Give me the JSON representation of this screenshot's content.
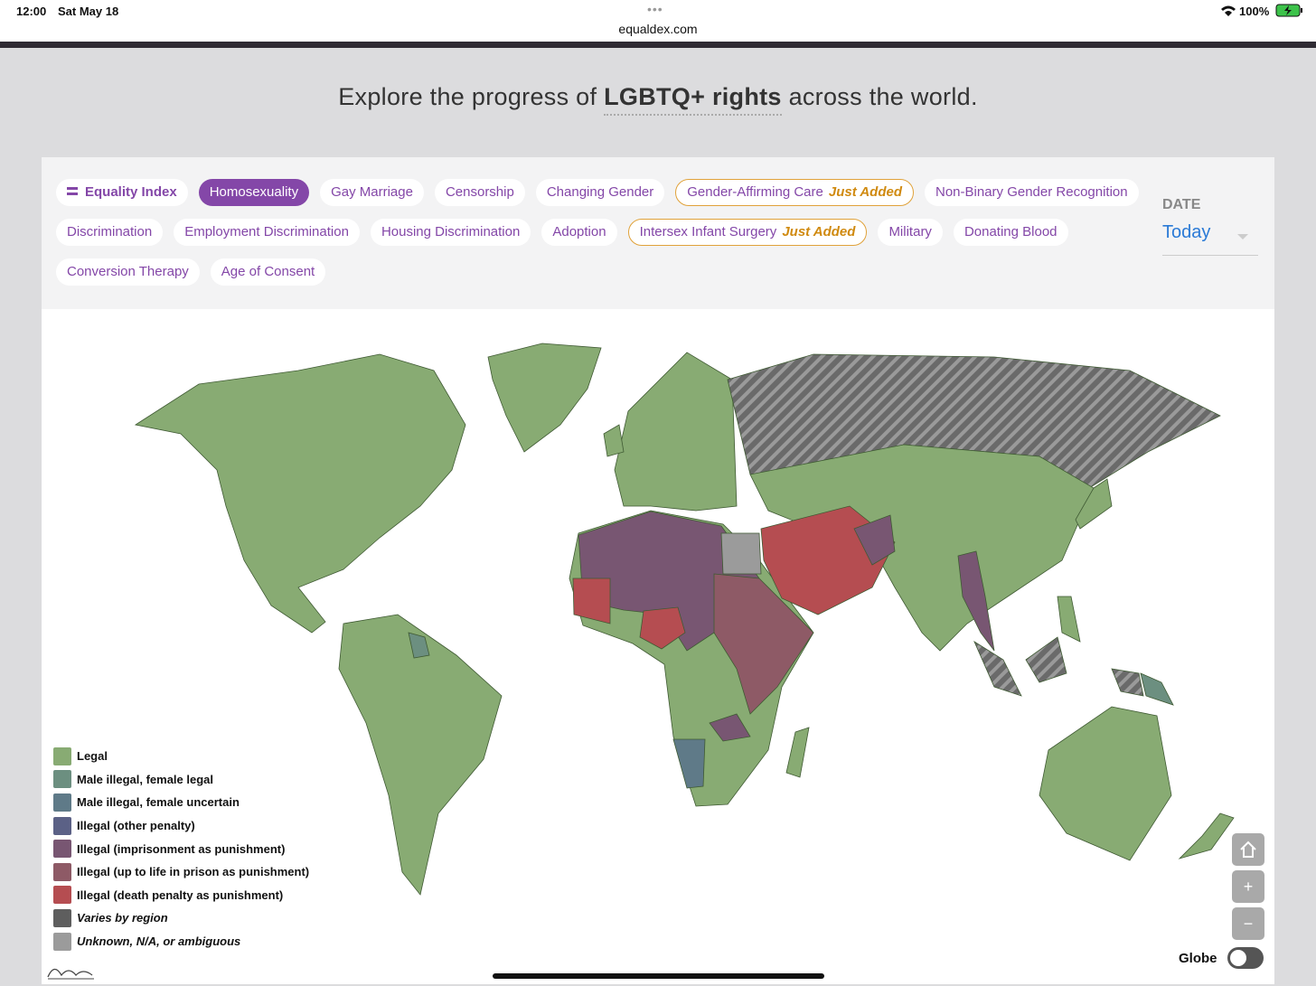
{
  "status_bar": {
    "time": "12:00",
    "date": "Sat May 18",
    "url": "equaldex.com",
    "battery": "100%"
  },
  "headline": {
    "before": "Explore the progress of ",
    "emphasis": "LGBTQ+ rights",
    "after": " across the world."
  },
  "tabs": [
    {
      "label": "Equality Index",
      "bold": true
    },
    {
      "label": "Homosexuality",
      "active": true
    },
    {
      "label": "Gay Marriage"
    },
    {
      "label": "Censorship"
    },
    {
      "label": "Changing Gender"
    },
    {
      "label": "Gender-Affirming Care",
      "badge": "Just Added"
    },
    {
      "label": "Non-Binary Gender Recognition"
    },
    {
      "label": "Discrimination"
    },
    {
      "label": "Employment Discrimination"
    },
    {
      "label": "Housing Discrimination"
    },
    {
      "label": "Adoption"
    },
    {
      "label": "Intersex Infant Surgery",
      "badge": "Just Added"
    },
    {
      "label": "Military"
    },
    {
      "label": "Donating Blood"
    },
    {
      "label": "Conversion Therapy"
    },
    {
      "label": "Age of Consent"
    }
  ],
  "date_filter": {
    "label": "DATE",
    "value": "Today"
  },
  "legend": [
    {
      "label": "Legal",
      "color": "#88ab73"
    },
    {
      "label": "Male illegal, female legal",
      "color": "#6c8f80"
    },
    {
      "label": "Male illegal, female uncertain",
      "color": "#5f7a88"
    },
    {
      "label": "Illegal (other penalty)",
      "color": "#5b6186"
    },
    {
      "label": "Illegal (imprisonment as punishment)",
      "color": "#785672"
    },
    {
      "label": "Illegal (up to life in prison as punishment)",
      "color": "#8e5a66"
    },
    {
      "label": "Illegal (death penalty as punishment)",
      "color": "#b54d51"
    },
    {
      "label": "Varies by region",
      "color": "#5e5e5e",
      "italic": true
    },
    {
      "label": "Unknown, N/A, or ambiguous",
      "color": "#9b9b9b",
      "italic": true
    }
  ],
  "map_controls": {
    "zoom_in": "+",
    "zoom_out": "−",
    "globe": "Globe"
  }
}
